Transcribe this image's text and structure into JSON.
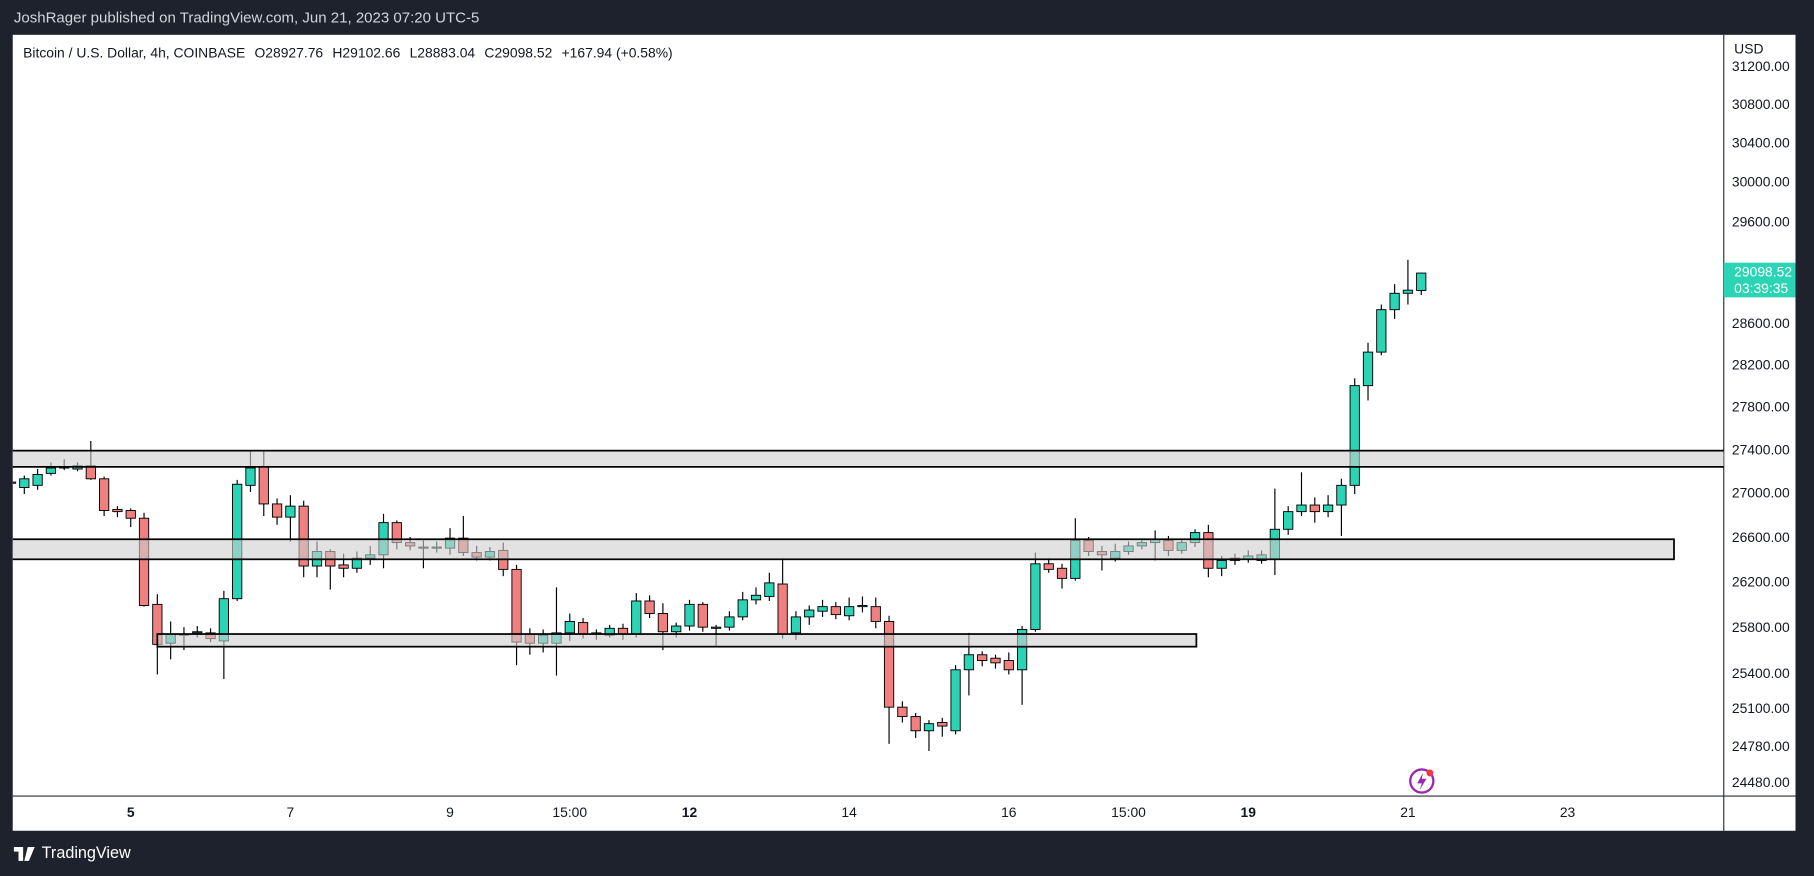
{
  "page": {
    "header": "JoshRager published on TradingView.com, Jun 21, 2023 07:20 UTC-5",
    "footer": "TradingView"
  },
  "chart_data": {
    "type": "candlestick",
    "title": "Bitcoin / U.S. Dollar, 4h, COINBASE",
    "legend_items": [
      "O28927.76",
      "H29102.66",
      "L28883.04",
      "C29098.52",
      "+167.94 (+0.58%)"
    ],
    "y_axis_label": "USD",
    "countdown": "03:39:35",
    "up_color": "#2bd4b4",
    "down_color": "#f08080",
    "zone_color": "#cfcfcf",
    "log_scale": true,
    "open": [
      27110,
      27060,
      27080,
      27190,
      27240,
      27230,
      27260,
      27140,
      26860,
      26850,
      26780,
      26010,
      25670,
      25740,
      25760,
      25760,
      25690,
      26060,
      27080,
      27250,
      26910,
      26790,
      26890,
      26350,
      26480,
      26360,
      26330,
      26420,
      26450,
      26740,
      26560,
      26520,
      26510,
      26510,
      26600,
      26470,
      26430,
      26490,
      26320,
      25750,
      25670,
      25670,
      25760,
      25850,
      25760,
      25740,
      25800,
      25750,
      26040,
      25930,
      25770,
      25820,
      26010,
      25800,
      25810,
      25900,
      26050,
      26080,
      26190,
      25760,
      25900,
      25950,
      25990,
      25910,
      25990,
      25990,
      25860,
      25120,
      25040,
      24920,
      24990,
      24920,
      25440,
      25570,
      25540,
      25520,
      25440,
      25790,
      26370,
      26330,
      26240,
      26580,
      26480,
      26420,
      26480,
      26530,
      26560,
      26580,
      26490,
      26560,
      26650,
      26330,
      26400,
      26410,
      26400,
      26410,
      26680,
      26840,
      26900,
      26840,
      26900,
      27080,
      28010,
      28330,
      28740,
      28900,
      28927.76
    ],
    "high": [
      27130,
      27170,
      27230,
      27290,
      27320,
      27290,
      27490,
      27160,
      26890,
      26870,
      26830,
      26100,
      25860,
      25810,
      25820,
      25800,
      26130,
      27130,
      27400,
      27400,
      26960,
      26990,
      26940,
      26570,
      26500,
      26460,
      26480,
      26530,
      26820,
      26760,
      26610,
      26580,
      26570,
      26690,
      26800,
      26530,
      26520,
      26560,
      26360,
      25800,
      25790,
      26160,
      25930,
      25890,
      25790,
      25830,
      25840,
      26110,
      26090,
      26020,
      25850,
      26050,
      26030,
      25830,
      25950,
      26120,
      26160,
      26290,
      26420,
      25950,
      26000,
      26050,
      26030,
      26070,
      26080,
      26070,
      25910,
      25170,
      25070,
      25010,
      25030,
      25480,
      25760,
      25600,
      25570,
      25590,
      25820,
      26470,
      26420,
      26370,
      26780,
      26610,
      26530,
      26550,
      26570,
      26590,
      26670,
      26620,
      26590,
      26680,
      26720,
      26440,
      26460,
      26490,
      26490,
      27050,
      26890,
      27200,
      26970,
      26990,
      27140,
      28080,
      28420,
      28790,
      28990,
      29230,
      29102.66
    ],
    "low": [
      27080,
      27000,
      27040,
      27170,
      27220,
      27210,
      27130,
      26800,
      26790,
      26700,
      25990,
      25400,
      25530,
      25610,
      25720,
      25680,
      25360,
      26040,
      27020,
      26800,
      26720,
      26570,
      26250,
      26250,
      26140,
      26250,
      26290,
      26360,
      26330,
      26500,
      26490,
      26330,
      26470,
      26450,
      26440,
      26400,
      26400,
      26260,
      25480,
      25570,
      25590,
      25390,
      25690,
      25710,
      25700,
      25720,
      25700,
      25720,
      25890,
      25610,
      25720,
      25780,
      25770,
      25640,
      25780,
      25870,
      26010,
      26040,
      25710,
      25700,
      25830,
      25900,
      25880,
      25870,
      25940,
      25800,
      24810,
      24990,
      24860,
      24750,
      24870,
      24890,
      25220,
      25470,
      25450,
      25400,
      25140,
      25770,
      26290,
      26150,
      26220,
      26440,
      26310,
      26390,
      26450,
      26500,
      26400,
      26440,
      26460,
      26520,
      26250,
      26260,
      26360,
      26380,
      26370,
      26270,
      26630,
      26800,
      26740,
      26790,
      26620,
      27000,
      27870,
      28300,
      28650,
      28790,
      28883.04
    ],
    "close": [
      27100,
      27140,
      27180,
      27240,
      27250,
      27260,
      27140,
      26850,
      26840,
      26780,
      26000,
      25660,
      25750,
      25750,
      25770,
      25710,
      26060,
      27090,
      27240,
      26910,
      26790,
      26890,
      26350,
      26480,
      26350,
      26330,
      26420,
      26450,
      26740,
      26560,
      26530,
      26510,
      26520,
      26600,
      26470,
      26430,
      26480,
      26320,
      25680,
      25670,
      25740,
      25760,
      25860,
      25750,
      25750,
      25800,
      25750,
      26040,
      25930,
      25770,
      25820,
      26010,
      25810,
      25810,
      25900,
      26050,
      26090,
      26200,
      25750,
      25900,
      25960,
      25990,
      25920,
      25990,
      26000,
      25860,
      25120,
      25040,
      24920,
      24980,
      24960,
      25440,
      25570,
      25520,
      25500,
      25440,
      25790,
      26370,
      26320,
      26240,
      26580,
      26480,
      26450,
      26480,
      26530,
      26560,
      26590,
      26490,
      26560,
      26650,
      26330,
      26400,
      26420,
      26440,
      26450,
      26680,
      26840,
      26900,
      26840,
      26900,
      27080,
      28010,
      28330,
      28740,
      28900,
      28930.58,
      29098.52
    ],
    "zones": [
      {
        "x": [
          0,
          130
        ],
        "y": [
          27250,
          27400
        ]
      },
      {
        "x": [
          0,
          125
        ],
        "y": [
          26410,
          26590
        ]
      },
      {
        "x": [
          11,
          89.1
        ],
        "y": [
          25640,
          25750
        ]
      }
    ],
    "xlim": [
      0.13,
      128.74
    ],
    "xticks": [
      {
        "value": 9,
        "label": "5",
        "bold": true
      },
      {
        "value": 21,
        "label": "7"
      },
      {
        "value": 33,
        "label": "9"
      },
      {
        "value": 42,
        "label": "15:00"
      },
      {
        "value": 51,
        "label": "12",
        "bold": true
      },
      {
        "value": 63,
        "label": "14"
      },
      {
        "value": 75,
        "label": "16"
      },
      {
        "value": 84,
        "label": "15:00"
      },
      {
        "value": 93,
        "label": "19",
        "bold": true
      },
      {
        "value": 105,
        "label": "21"
      },
      {
        "value": 117,
        "label": "23"
      }
    ],
    "ylim": [
      24375,
      31544
    ],
    "yticks": [
      {
        "value": 31200,
        "label": "31200.00"
      },
      {
        "value": 30800,
        "label": "30800.00"
      },
      {
        "value": 30400,
        "label": "30400.00"
      },
      {
        "value": 30000,
        "label": "30000.00"
      },
      {
        "value": 29600,
        "label": "29600.00"
      },
      {
        "value": 28600,
        "label": "28600.00"
      },
      {
        "value": 28200,
        "label": "28200.00"
      },
      {
        "value": 27800,
        "label": "27800.00"
      },
      {
        "value": 27400,
        "label": "27400.00"
      },
      {
        "value": 27000,
        "label": "27000.00"
      },
      {
        "value": 26600,
        "label": "26600.00"
      },
      {
        "value": 26200,
        "label": "26200.00"
      },
      {
        "value": 25800,
        "label": "25800.00"
      },
      {
        "value": 25400,
        "label": "25400.00"
      },
      {
        "value": 25100,
        "label": "25100.00"
      },
      {
        "value": 24780,
        "label": "24780.00"
      },
      {
        "value": 24480,
        "label": "24480.00"
      }
    ]
  }
}
